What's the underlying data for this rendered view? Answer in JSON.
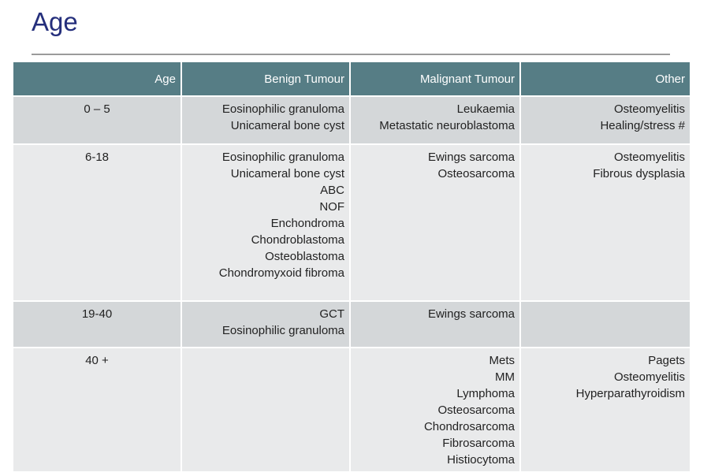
{
  "title": "Age",
  "table": {
    "headers": {
      "age": "Age",
      "benign": "Benign Tumour",
      "malignant": "Malignant Tumour",
      "other": "Other"
    },
    "rows": [
      {
        "age": "0 – 5",
        "benign": [
          "Eosinophilic granuloma",
          "Unicameral bone cyst"
        ],
        "malignant": [
          "Leukaemia",
          "Metastatic neuroblastoma"
        ],
        "other": [
          "Osteomyelitis",
          "Healing/stress #"
        ]
      },
      {
        "age": "6-18",
        "benign": [
          "Eosinophilic granuloma",
          "Unicameral bone cyst",
          "ABC",
          "NOF",
          "Enchondroma",
          "Chondroblastoma",
          "Osteoblastoma",
          "Chondromyxoid fibroma"
        ],
        "malignant": [
          "Ewings sarcoma",
          "Osteosarcoma"
        ],
        "other": [
          "Osteomyelitis",
          "Fibrous dysplasia"
        ]
      },
      {
        "age": "19-40",
        "benign": [
          "GCT",
          "Eosinophilic granuloma"
        ],
        "malignant": [
          "Ewings sarcoma"
        ],
        "other": []
      },
      {
        "age": "40 +",
        "benign": [],
        "malignant": [
          "Mets",
          "MM",
          "Lymphoma",
          "Osteosarcoma",
          "Chondrosarcoma",
          "Fibrosarcoma",
          "Histiocytoma"
        ],
        "other": [
          "Pagets",
          "Osteomyelitis",
          "Hyperparathyroidism"
        ]
      }
    ]
  },
  "colors": {
    "title_text": "#252f7c",
    "header_bg": "#567d85",
    "header_text": "#ffffff",
    "row_alt_dark": "#d4d7d9",
    "row_alt_light": "#e9eaeb",
    "body_text": "#222222",
    "divider": "#9b9b9b"
  }
}
